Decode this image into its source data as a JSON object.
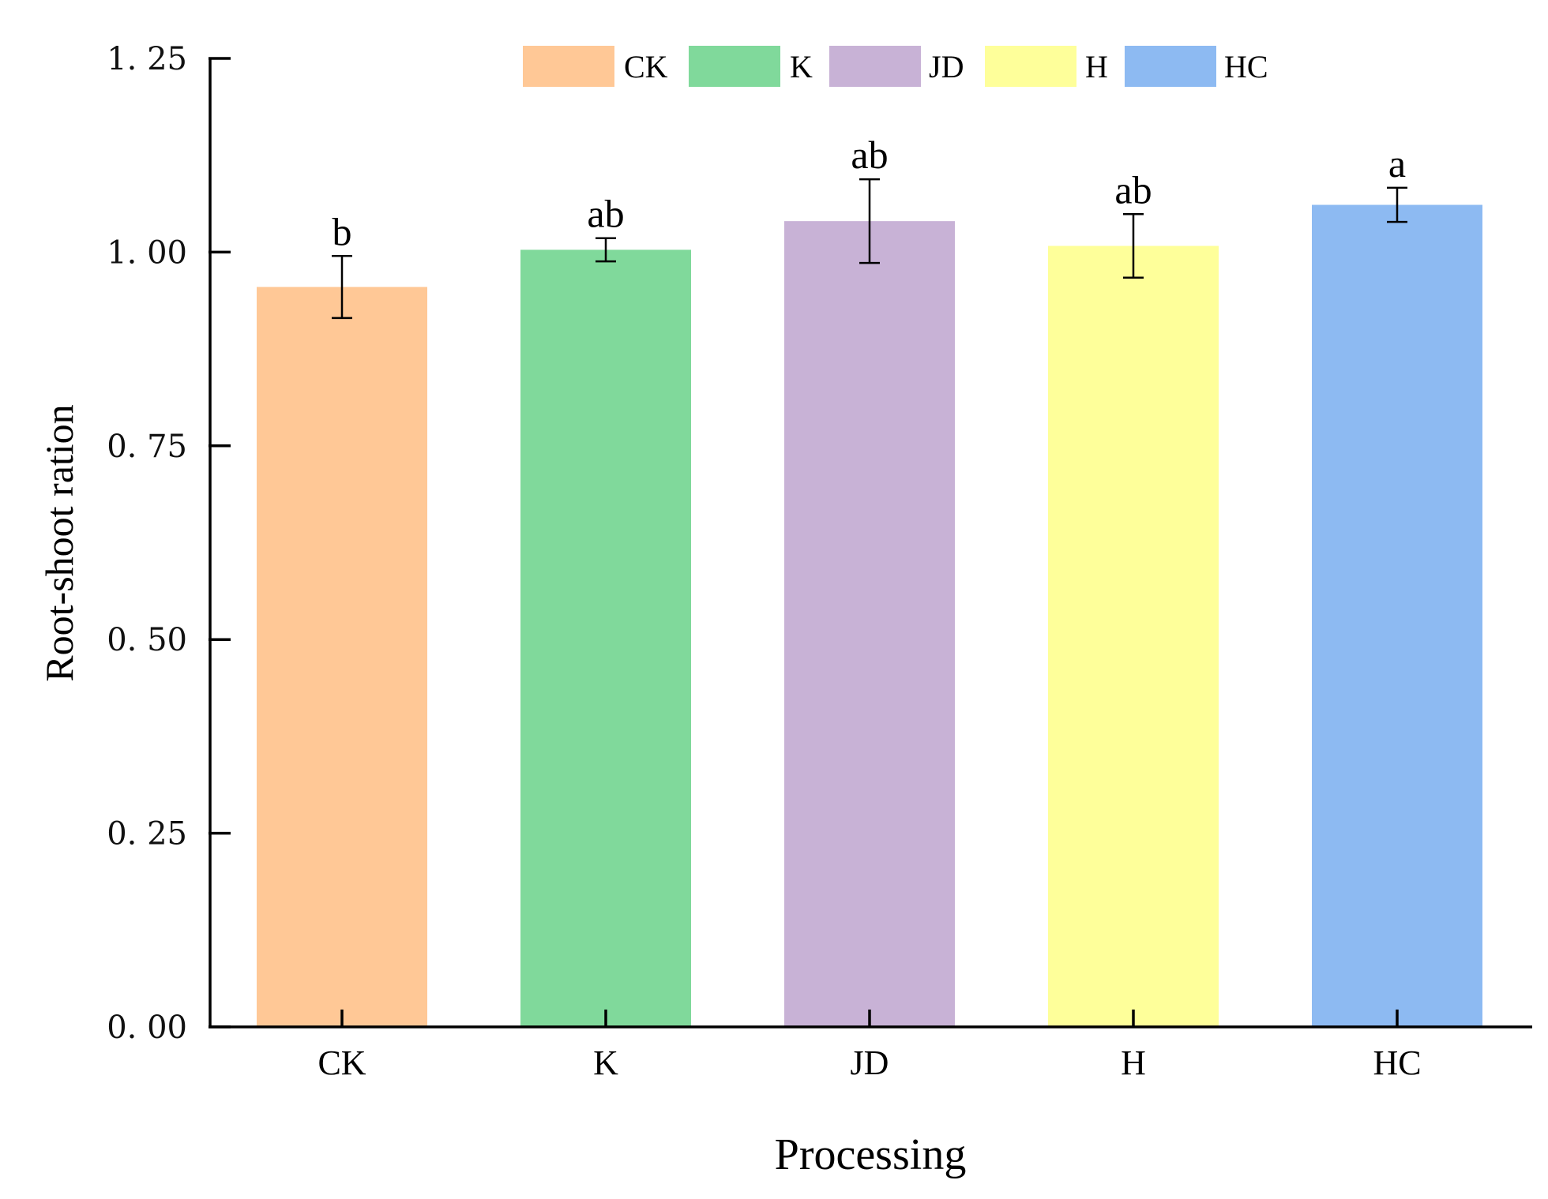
{
  "chart_data": {
    "type": "bar",
    "title": "",
    "xlabel": "Processing",
    "ylabel": "Root-shoot ration",
    "categories": [
      "CK",
      "K",
      "JD",
      "H",
      "HC"
    ],
    "values": [
      0.955,
      1.003,
      1.04,
      1.008,
      1.061
    ],
    "errors": [
      0.04,
      0.015,
      0.054,
      0.041,
      0.022
    ],
    "significance": [
      "b",
      "ab",
      "ab",
      "ab",
      "a"
    ],
    "colors": [
      "#ffc896",
      "#80d99b",
      "#c8b2d6",
      "#feff9a",
      "#8dbaf2"
    ],
    "ylim": [
      0,
      1.25
    ],
    "yticks": [
      0,
      0.25,
      0.5,
      0.75,
      1.0,
      1.25
    ],
    "ytick_labels": [
      "0. 00",
      "0. 25",
      "0. 50",
      "0. 75",
      "1. 00",
      "1. 25"
    ],
    "legend": [
      "CK",
      "K",
      "JD",
      "H",
      "HC"
    ],
    "legend_position": "top",
    "grid": false
  }
}
